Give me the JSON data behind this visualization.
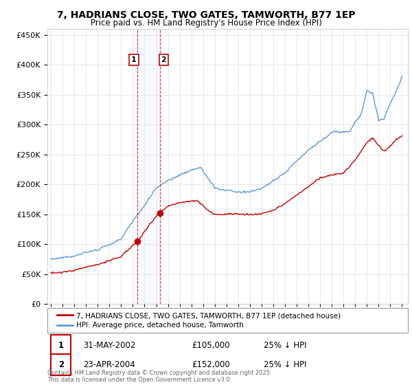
{
  "title": "7, HADRIANS CLOSE, TWO GATES, TAMWORTH, B77 1EP",
  "subtitle": "Price paid vs. HM Land Registry's House Price Index (HPI)",
  "footer": "Contains HM Land Registry data © Crown copyright and database right 2025.\nThis data is licensed under the Open Government Licence v3.0.",
  "legend_line1": "7, HADRIANS CLOSE, TWO GATES, TAMWORTH, B77 1EP (detached house)",
  "legend_line2": "HPI: Average price, detached house, Tamworth",
  "transaction1_label": "1",
  "transaction1_date": "31-MAY-2002",
  "transaction1_price": "£105,000",
  "transaction1_hpi": "25% ↓ HPI",
  "transaction2_label": "2",
  "transaction2_date": "23-APR-2004",
  "transaction2_price": "£152,000",
  "transaction2_hpi": "25% ↓ HPI",
  "hpi_color": "#5b9bd5",
  "price_color": "#c00000",
  "vline_color": "#ff0000",
  "shade_color": "#ddeeff",
  "ylim": [
    0,
    460000
  ],
  "yticks": [
    0,
    50000,
    100000,
    150000,
    200000,
    250000,
    300000,
    350000,
    400000,
    450000
  ],
  "background_color": "#ffffff",
  "grid_color": "#dddddd",
  "t1_year": 2002.414,
  "t2_year": 2004.31,
  "t1_price": 105000,
  "t2_price": 152000
}
